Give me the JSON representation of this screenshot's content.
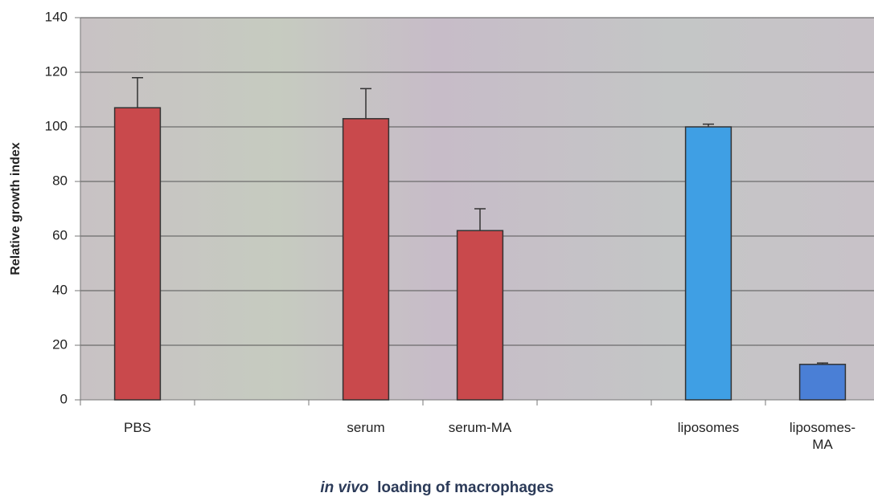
{
  "chart_data": {
    "type": "bar",
    "categories": [
      "PBS",
      null,
      "serum",
      "serum-MA",
      null,
      "liposomes",
      "liposomes-MA"
    ],
    "values": [
      107,
      null,
      103,
      62,
      null,
      100,
      13
    ],
    "errors": [
      11,
      null,
      11,
      8,
      null,
      1,
      0.5
    ],
    "colors": [
      "#c9494c",
      null,
      "#c9494c",
      "#c9494c",
      null,
      "#3f9fe4",
      "#4a7fd6"
    ],
    "ylabel": "Relative growth index",
    "xlabel": {
      "italic": "in vivo",
      "text": "loading of macrophages"
    },
    "ylim": [
      0,
      140
    ],
    "yticks": [
      0,
      20,
      40,
      60,
      80,
      100,
      120,
      140
    ],
    "grid": true
  }
}
